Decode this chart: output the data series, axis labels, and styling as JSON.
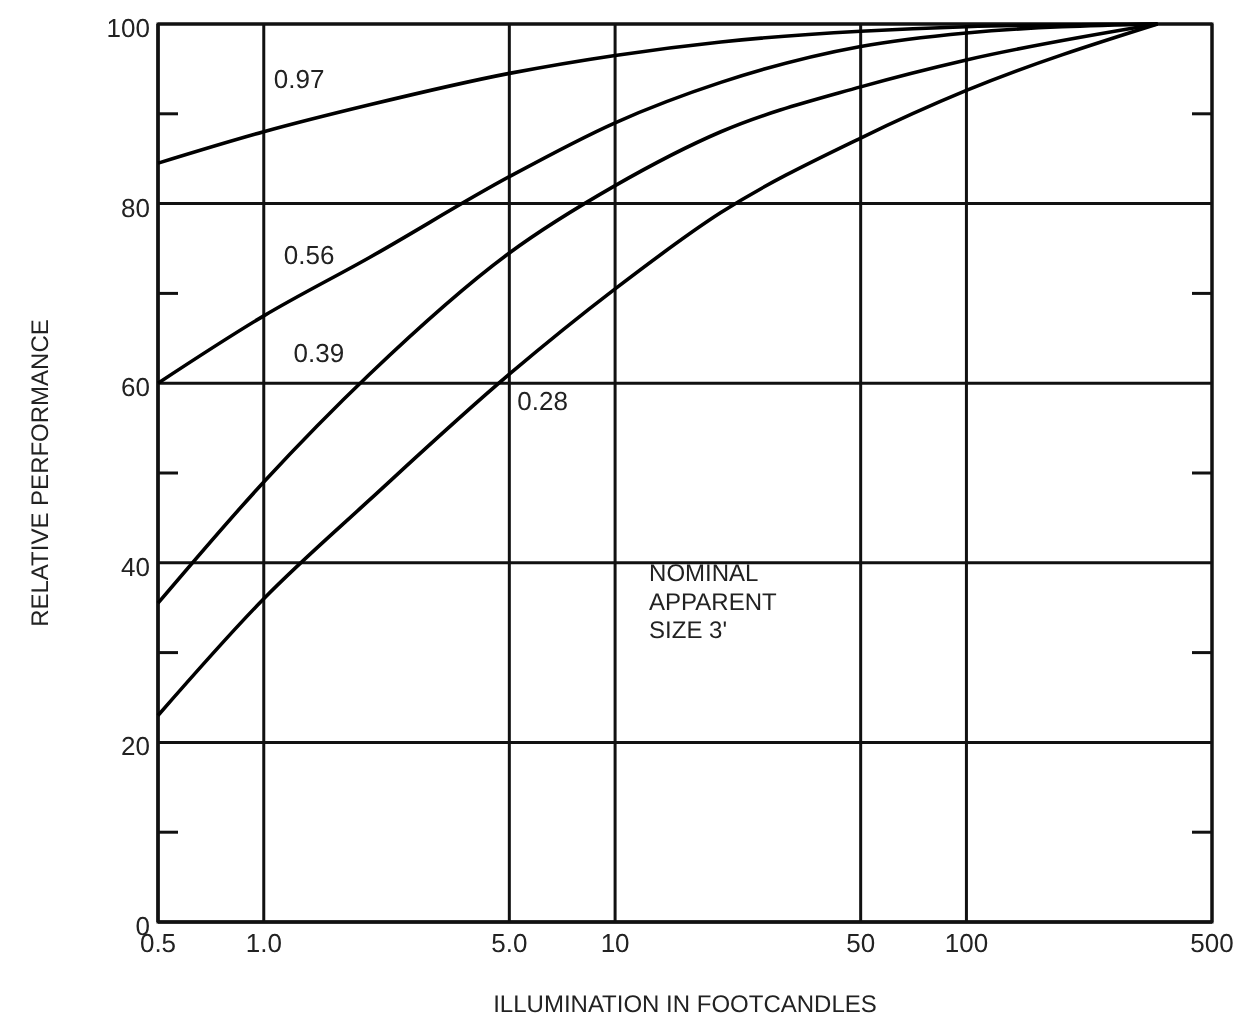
{
  "chart_data": {
    "type": "line",
    "xlabel": "ILLUMINATION IN FOOTCANDLES",
    "ylabel": "RELATIVE PERFORMANCE",
    "log": "x",
    "grid": true,
    "marker": "none",
    "line_style": "solid",
    "xlim": [
      0.5,
      500
    ],
    "xticks": [
      0.5,
      {
        "value": 1,
        "label": "1.0"
      },
      {
        "value": 5,
        "label": "5.0"
      },
      10,
      50,
      100,
      500
    ],
    "ylim": [
      0,
      100
    ],
    "yticks": [
      0,
      {
        "value": 10,
        "label": null
      },
      20,
      {
        "value": 30,
        "label": null
      },
      40,
      {
        "value": 50,
        "label": null
      },
      60,
      {
        "value": 70,
        "label": null
      },
      80,
      {
        "value": 90,
        "label": null
      },
      100
    ],
    "x": [
      0.5,
      1,
      2,
      5,
      10,
      20,
      50,
      100,
      350
    ],
    "series": [
      {
        "name": "0.97",
        "color": "#000000",
        "values": [
          84.5,
          88,
          91,
          94.5,
          96.5,
          98,
          99.2,
          99.7,
          100
        ]
      },
      {
        "name": "0.56",
        "color": "#000000",
        "values": [
          60,
          67.5,
          74,
          83,
          89,
          93.5,
          97.5,
          99,
          100
        ]
      },
      {
        "name": "0.39",
        "color": "#000000",
        "values": [
          35.5,
          49,
          61,
          74.5,
          82,
          88,
          93,
          96,
          100
        ]
      },
      {
        "name": "0.28",
        "color": "#000000",
        "values": [
          23,
          36,
          47,
          61,
          70.5,
          79,
          87.3,
          92.6,
          100
        ]
      }
    ],
    "annotations": [
      "NOMINAL\nAPPARENT\nSIZE 3'"
    ]
  }
}
